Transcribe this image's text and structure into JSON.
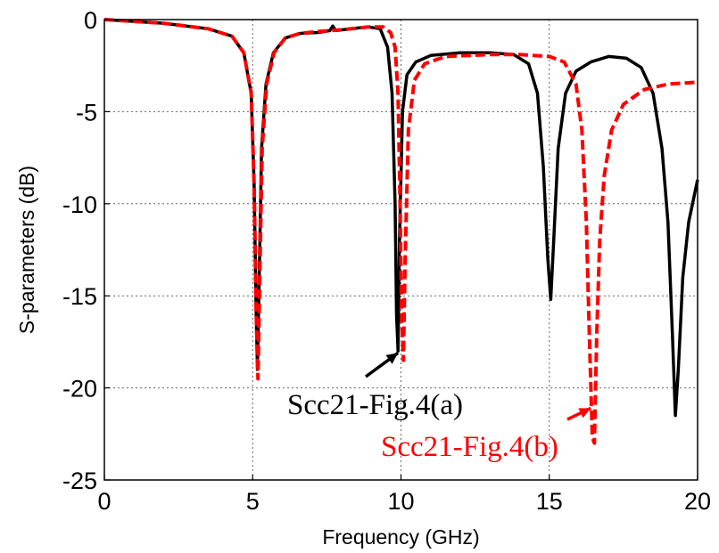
{
  "chart_data": {
    "type": "line",
    "title": "",
    "xlabel": "Frequency (GHz)",
    "ylabel": "S-parameters (dB)",
    "xlim": [
      0,
      20
    ],
    "ylim": [
      -25,
      0
    ],
    "xticks": [
      "0",
      "5",
      "10",
      "15",
      "20"
    ],
    "yticks": [
      "0",
      "-5",
      "-10",
      "-15",
      "-20",
      "-25"
    ],
    "grid": true,
    "series": [
      {
        "name": "Scc21-Fig.4(a)",
        "color": "#000000",
        "style": "solid",
        "points": [
          [
            0,
            0
          ],
          [
            2,
            -0.2
          ],
          [
            3.5,
            -0.5
          ],
          [
            4.3,
            -0.9
          ],
          [
            4.7,
            -1.8
          ],
          [
            4.95,
            -4
          ],
          [
            5.05,
            -9
          ],
          [
            5.12,
            -16
          ],
          [
            5.16,
            -19
          ],
          [
            5.22,
            -14
          ],
          [
            5.3,
            -7
          ],
          [
            5.45,
            -3.5
          ],
          [
            5.7,
            -1.8
          ],
          [
            6.1,
            -1
          ],
          [
            6.6,
            -0.75
          ],
          [
            7.2,
            -0.7
          ],
          [
            7.6,
            -0.6
          ],
          [
            7.7,
            -0.35
          ],
          [
            7.8,
            -0.6
          ],
          [
            8.3,
            -0.5
          ],
          [
            8.9,
            -0.4
          ],
          [
            9.3,
            -0.5
          ],
          [
            9.55,
            -1.5
          ],
          [
            9.7,
            -4
          ],
          [
            9.8,
            -10
          ],
          [
            9.85,
            -16
          ],
          [
            9.9,
            -18
          ],
          [
            9.95,
            -12
          ],
          [
            10.05,
            -5
          ],
          [
            10.2,
            -3
          ],
          [
            10.5,
            -2.3
          ],
          [
            11,
            -1.95
          ],
          [
            12,
            -1.8
          ],
          [
            13,
            -1.8
          ],
          [
            13.8,
            -1.9
          ],
          [
            14.3,
            -2.4
          ],
          [
            14.6,
            -4
          ],
          [
            14.8,
            -8
          ],
          [
            14.95,
            -13
          ],
          [
            15.05,
            -15.2
          ],
          [
            15.15,
            -12
          ],
          [
            15.3,
            -7
          ],
          [
            15.55,
            -4
          ],
          [
            15.9,
            -2.8
          ],
          [
            16.4,
            -2.3
          ],
          [
            17.0,
            -2.0
          ],
          [
            17.6,
            -2.1
          ],
          [
            18.1,
            -2.6
          ],
          [
            18.5,
            -4
          ],
          [
            18.8,
            -7
          ],
          [
            19.0,
            -11
          ],
          [
            19.15,
            -17
          ],
          [
            19.25,
            -21.5
          ],
          [
            19.35,
            -19
          ],
          [
            19.5,
            -14
          ],
          [
            19.7,
            -11
          ],
          [
            20,
            -8.7
          ]
        ]
      },
      {
        "name": "Scc21-Fig.4(b)",
        "color": "#ff0000",
        "style": "dashed",
        "points": [
          [
            0,
            0
          ],
          [
            2,
            -0.2
          ],
          [
            3.5,
            -0.5
          ],
          [
            4.3,
            -0.9
          ],
          [
            4.7,
            -1.8
          ],
          [
            4.95,
            -4
          ],
          [
            5.05,
            -9
          ],
          [
            5.12,
            -16
          ],
          [
            5.18,
            -19.5
          ],
          [
            5.24,
            -14
          ],
          [
            5.32,
            -7
          ],
          [
            5.47,
            -3.5
          ],
          [
            5.72,
            -1.8
          ],
          [
            6.1,
            -1
          ],
          [
            6.6,
            -0.75
          ],
          [
            7.2,
            -0.65
          ],
          [
            8.0,
            -0.55
          ],
          [
            8.9,
            -0.4
          ],
          [
            9.4,
            -0.4
          ],
          [
            9.65,
            -0.7
          ],
          [
            9.8,
            -1.5
          ],
          [
            9.9,
            -4
          ],
          [
            9.97,
            -10
          ],
          [
            10.02,
            -16
          ],
          [
            10.08,
            -18.5
          ],
          [
            10.14,
            -13
          ],
          [
            10.25,
            -6
          ],
          [
            10.45,
            -3.3
          ],
          [
            10.8,
            -2.4
          ],
          [
            11.5,
            -2.0
          ],
          [
            13,
            -1.9
          ],
          [
            14,
            -1.9
          ],
          [
            15.0,
            -2.0
          ],
          [
            15.5,
            -2.3
          ],
          [
            15.9,
            -3.5
          ],
          [
            16.1,
            -6
          ],
          [
            16.25,
            -11
          ],
          [
            16.35,
            -17
          ],
          [
            16.45,
            -22.7
          ],
          [
            16.52,
            -23
          ],
          [
            16.6,
            -17
          ],
          [
            16.7,
            -12
          ],
          [
            16.85,
            -8.5
          ],
          [
            17.1,
            -6
          ],
          [
            17.5,
            -4.6
          ],
          [
            18.2,
            -3.8
          ],
          [
            19,
            -3.5
          ],
          [
            20,
            -3.4
          ]
        ]
      }
    ],
    "annotations": [
      {
        "text": "Scc21-Fig.4(a)",
        "color": "#000000",
        "arrow_to": [
          9.9,
          -18.1
        ]
      },
      {
        "text": "Scc21-Fig.4(b)",
        "color": "#ff0000",
        "arrow_to": [
          16.4,
          -21.1
        ]
      }
    ]
  }
}
